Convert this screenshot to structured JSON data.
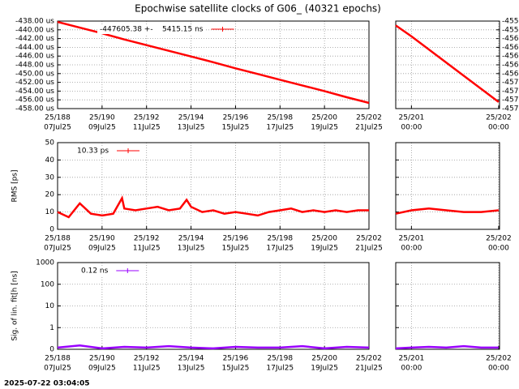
{
  "title": "Epochwise satellite clocks of G06_ (40321 epochs)",
  "timestamp": "2025-07-22 03:04:05",
  "chart_data": [
    {
      "type": "line",
      "grid": true,
      "log": false,
      "ytick_side": "left",
      "x": [
        188,
        189,
        190,
        191,
        192,
        193,
        194,
        195,
        196,
        197,
        198,
        199,
        200,
        201,
        202
      ],
      "series": [
        {
          "name": "-447605.38 +-    5415.15 ns",
          "color": "#ff0000",
          "values": [
            -438.2,
            -439.5,
            -440.8,
            -442.2,
            -443.5,
            -444.8,
            -446.1,
            -447.4,
            -448.8,
            -450.1,
            -451.4,
            -452.7,
            -454.0,
            -455.4,
            -456.7
          ]
        }
      ],
      "xlim": [
        188,
        202
      ],
      "xticks": [
        {
          "value": 188,
          "label": "25/188",
          "date": "07Jul25"
        },
        {
          "value": 190,
          "label": "25/190",
          "date": "09Jul25"
        },
        {
          "value": 192,
          "label": "25/192",
          "date": "11Jul25"
        },
        {
          "value": 194,
          "label": "25/194",
          "date": "13Jul25"
        },
        {
          "value": 196,
          "label": "25/196",
          "date": "15Jul25"
        },
        {
          "value": 198,
          "label": "25/198",
          "date": "17Jul25"
        },
        {
          "value": 200,
          "label": "25/200",
          "date": "19Jul25"
        },
        {
          "value": 202,
          "label": "25/202",
          "date": "21Jul25"
        }
      ],
      "ylim": [
        -458,
        -438
      ],
      "yticks": [
        {
          "value": -438,
          "label": "-438.00 us"
        },
        {
          "value": -440,
          "label": "-440.00 us"
        },
        {
          "value": -442,
          "label": "-442.00 us"
        },
        {
          "value": -444,
          "label": "-444.00 us"
        },
        {
          "value": -446,
          "label": "-446.00 us"
        },
        {
          "value": -448,
          "label": "-448.00 us"
        },
        {
          "value": -450,
          "label": "-450.00 us"
        },
        {
          "value": -452,
          "label": "-452.00 us"
        },
        {
          "value": -454,
          "label": "-454.00 us"
        },
        {
          "value": -456,
          "label": "-456.00 us"
        },
        {
          "value": -458,
          "label": "-458.00 us"
        }
      ]
    },
    {
      "type": "line",
      "grid": true,
      "log": false,
      "ytick_side": "right",
      "x": [
        200.82,
        201.0,
        201.5,
        202.0
      ],
      "series": [
        {
          "color": "#ff0000",
          "values": [
            -455.3,
            -455.55,
            -456.3,
            -457.05
          ]
        }
      ],
      "xlim": [
        200.82,
        202.01
      ],
      "xticks": [
        {
          "value": 201,
          "label": "25/201",
          "date": "00:00"
        },
        {
          "value": 202,
          "label": "25/202",
          "date": "00:00"
        }
      ],
      "ylim": [
        -457.2,
        -455.2
      ],
      "yticks": [
        {
          "value": -455.2,
          "label": "-455"
        },
        {
          "value": -455.4,
          "label": "-455"
        },
        {
          "value": -455.6,
          "label": "-456"
        },
        {
          "value": -455.8,
          "label": "-456"
        },
        {
          "value": -456.0,
          "label": "-456"
        },
        {
          "value": -456.2,
          "label": "-456"
        },
        {
          "value": -456.4,
          "label": "-456"
        },
        {
          "value": -456.6,
          "label": "-457"
        },
        {
          "value": -456.8,
          "label": "-457"
        },
        {
          "value": -457.0,
          "label": "-457"
        },
        {
          "value": -457.2,
          "label": "-457"
        }
      ]
    },
    {
      "type": "line",
      "grid": true,
      "log": false,
      "ytick_side": "left",
      "ylabel": "RMS [ps]",
      "x": [
        188,
        188.5,
        189,
        189.5,
        190,
        190.5,
        190.9,
        191,
        191.5,
        192,
        192.5,
        193,
        193.5,
        193.8,
        194,
        194.5,
        195,
        195.5,
        196,
        196.5,
        197,
        197.5,
        198,
        198.5,
        199,
        199.5,
        200,
        200.5,
        201,
        201.5,
        202
      ],
      "series": [
        {
          "name": "10.33 ps",
          "color": "#ff0000",
          "values": [
            10,
            7,
            15,
            9,
            8,
            9,
            18,
            12,
            11,
            12,
            13,
            11,
            12,
            17,
            13,
            10,
            11,
            9,
            10,
            9,
            8,
            10,
            11,
            12,
            10,
            11,
            10,
            11,
            10,
            11,
            11
          ]
        }
      ],
      "xlim": [
        188,
        202
      ],
      "xticks": [
        {
          "value": 188,
          "label": "25/188",
          "date": "07Jul25"
        },
        {
          "value": 190,
          "label": "25/190",
          "date": "09Jul25"
        },
        {
          "value": 192,
          "label": "25/192",
          "date": "11Jul25"
        },
        {
          "value": 194,
          "label": "25/194",
          "date": "13Jul25"
        },
        {
          "value": 196,
          "label": "25/196",
          "date": "15Jul25"
        },
        {
          "value": 198,
          "label": "25/198",
          "date": "17Jul25"
        },
        {
          "value": 200,
          "label": "25/200",
          "date": "19Jul25"
        },
        {
          "value": 202,
          "label": "25/202",
          "date": "21Jul25"
        }
      ],
      "ylim": [
        0,
        50
      ],
      "yticks": [
        0,
        10,
        20,
        30,
        40,
        50
      ]
    },
    {
      "type": "line",
      "grid": true,
      "log": false,
      "ytick_side": "none",
      "x": [
        200.82,
        201.0,
        201.2,
        201.4,
        201.6,
        201.8,
        202.0
      ],
      "series": [
        {
          "color": "#ff0000",
          "values": [
            9,
            11,
            12,
            11,
            10,
            10,
            11
          ]
        }
      ],
      "xlim": [
        200.82,
        202.01
      ],
      "xticks": [
        {
          "value": 201,
          "label": "25/201",
          "date": "00:00"
        },
        {
          "value": 202,
          "label": "25/202",
          "date": "00:00"
        }
      ],
      "ylim": [
        0,
        50
      ],
      "yticks": [
        0,
        10,
        20,
        30,
        40,
        50
      ]
    },
    {
      "type": "line",
      "grid": true,
      "log": true,
      "ytick_side": "left",
      "ylabel": "Sig. of lin. fit[h [ns]",
      "x": [
        188,
        189,
        190,
        191,
        192,
        193,
        194,
        195,
        196,
        197,
        198,
        199,
        200,
        201,
        202
      ],
      "series": [
        {
          "name": "0.12 ns",
          "color": "#9900ff",
          "values": [
            0.12,
            0.15,
            0.11,
            0.13,
            0.12,
            0.14,
            0.12,
            0.11,
            0.13,
            0.12,
            0.12,
            0.14,
            0.11,
            0.13,
            0.12
          ]
        }
      ],
      "xlim": [
        188,
        202
      ],
      "xticks": [
        {
          "value": 188,
          "label": "25/188",
          "date": "07Jul25"
        },
        {
          "value": 190,
          "label": "25/190",
          "date": "09Jul25"
        },
        {
          "value": 192,
          "label": "25/192",
          "date": "11Jul25"
        },
        {
          "value": 194,
          "label": "25/194",
          "date": "13Jul25"
        },
        {
          "value": 196,
          "label": "25/196",
          "date": "15Jul25"
        },
        {
          "value": 198,
          "label": "25/198",
          "date": "17Jul25"
        },
        {
          "value": 200,
          "label": "25/200",
          "date": "19Jul25"
        },
        {
          "value": 202,
          "label": "25/202",
          "date": "21Jul25"
        }
      ],
      "ylim": [
        0.1,
        1000
      ],
      "yticks": [
        {
          "value": 0.1,
          "label": "0"
        },
        1,
        10,
        100,
        1000
      ]
    },
    {
      "type": "line",
      "grid": true,
      "log": true,
      "ytick_side": "none",
      "x": [
        200.82,
        201.0,
        201.2,
        201.4,
        201.6,
        201.8,
        202.0
      ],
      "series": [
        {
          "color": "#9900ff",
          "values": [
            0.11,
            0.12,
            0.13,
            0.12,
            0.14,
            0.12,
            0.12
          ]
        }
      ],
      "xlim": [
        200.82,
        202.01
      ],
      "xticks": [
        {
          "value": 201,
          "label": "25/201",
          "date": "00:00"
        },
        {
          "value": 202,
          "label": "25/202",
          "date": "00:00"
        }
      ],
      "ylim": [
        0.1,
        1000
      ],
      "yticks": [
        {
          "value": 0.1,
          "label": "0"
        },
        1,
        10,
        100,
        1000
      ]
    }
  ]
}
